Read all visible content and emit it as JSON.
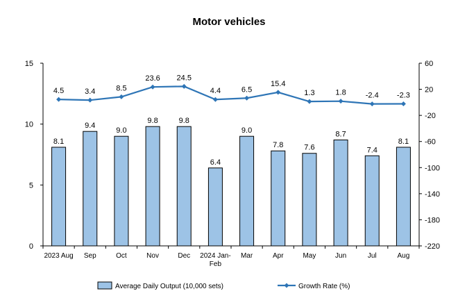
{
  "chart_data": {
    "type": "bar",
    "title": "Motor vehicles",
    "categories": [
      [
        "2023 Aug"
      ],
      [
        "Sep"
      ],
      [
        "Oct"
      ],
      [
        "Nov"
      ],
      [
        "Dec"
      ],
      [
        "2024 Jan-",
        "Feb"
      ],
      [
        "Mar"
      ],
      [
        "Apr"
      ],
      [
        "May"
      ],
      [
        "Jun"
      ],
      [
        "Jul"
      ],
      [
        "Aug"
      ]
    ],
    "series": [
      {
        "name": "Average Daily Output (10,000 sets)",
        "type": "bar",
        "axis": "left",
        "color": "#9DC3E6",
        "values": [
          8.1,
          9.4,
          9.0,
          9.8,
          9.8,
          6.4,
          9.0,
          7.8,
          7.6,
          8.7,
          7.4,
          8.1
        ],
        "labels": [
          "8.1",
          "9.4",
          "9.0",
          "9.8",
          "9.8",
          "6.4",
          "9.0",
          "7.8",
          "7.6",
          "8.7",
          "7.4",
          "8.1"
        ]
      },
      {
        "name": "Growth Rate (%)",
        "type": "line",
        "axis": "right",
        "color": "#2E75B6",
        "values": [
          4.5,
          3.4,
          8.5,
          23.6,
          24.5,
          4.4,
          6.5,
          15.4,
          1.3,
          1.8,
          -2.4,
          -2.3
        ],
        "labels": [
          "4.5",
          "3.4",
          "8.5",
          "23.6",
          "24.5",
          "4.4",
          "6.5",
          "15.4",
          "1.3",
          "1.8",
          "-2.4",
          "-2.3"
        ]
      }
    ],
    "y_left": {
      "min": 0,
      "max": 15,
      "ticks": [
        0,
        5,
        10,
        15
      ]
    },
    "y_right": {
      "min": -220,
      "max": 60,
      "ticks": [
        -220,
        -180,
        -140,
        -100,
        -60,
        -20,
        20,
        60
      ]
    },
    "legend": "bottom",
    "grid": false
  }
}
